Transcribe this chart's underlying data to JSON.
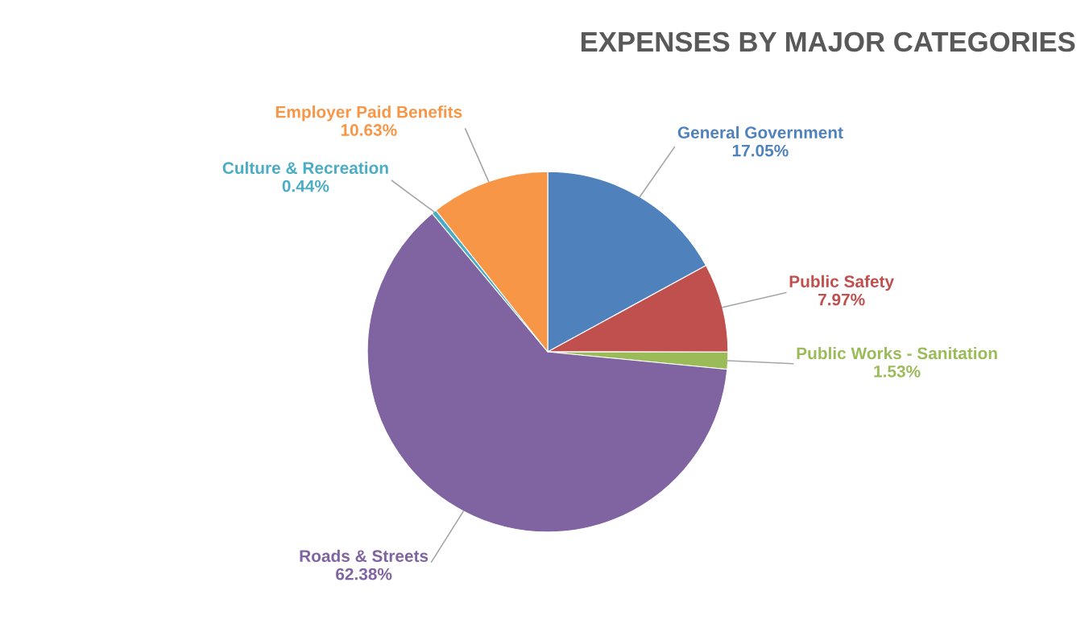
{
  "chart_data": {
    "type": "pie",
    "title": "EXPENSES BY MAJOR CATEGORIES",
    "categories": [
      "General Government",
      "Public Safety",
      "Public Works - Sanitation",
      "Roads & Streets",
      "Culture & Recreation",
      "Employer Paid Benefits"
    ],
    "values": [
      17.05,
      7.97,
      1.53,
      62.38,
      0.44,
      10.63
    ],
    "colors": [
      "#4f81bd",
      "#c0504d",
      "#9bbb59",
      "#8064a2",
      "#4bacc6",
      "#f79646"
    ],
    "value_labels": [
      "17.05%",
      "7.97%",
      "1.53%",
      "62.38%",
      "0.44%",
      "10.63%"
    ],
    "legend": false
  }
}
